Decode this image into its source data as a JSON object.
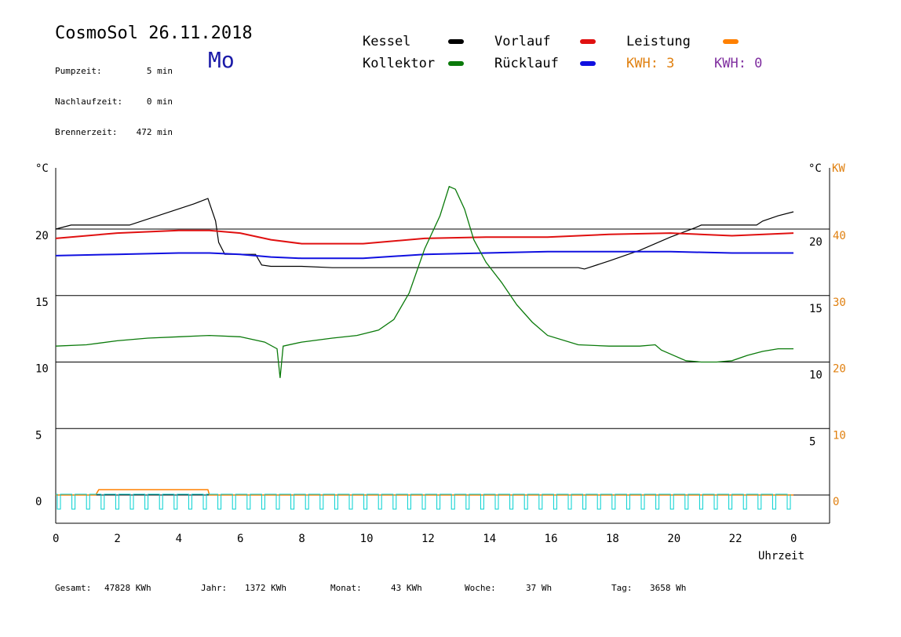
{
  "header": {
    "title": "CosmoSol 26.11.2018",
    "day": "Mo",
    "stats": [
      {
        "label": "Pumpzeit:",
        "value": "5 min"
      },
      {
        "label": "Nachlaufzeit:",
        "value": "0 min"
      },
      {
        "label": "Brennerzeit:",
        "value": "472 min"
      }
    ]
  },
  "legend": {
    "kessel": "Kessel",
    "kollektor": "Kollektor",
    "vorlauf": "Vorlauf",
    "ruecklauf": "Rücklauf",
    "leistung": "Leistung",
    "kwh_orange": "KWH: 3",
    "kwh_purple": "KWH: 0"
  },
  "colors": {
    "kessel": "#000000",
    "kollektor": "#0a7a0a",
    "vorlauf": "#e01010",
    "ruecklauf": "#1010e0",
    "leistung": "#ff8000",
    "pump": "#00d0d0",
    "kwh_orange": "#e08010",
    "kwh_purple": "#8030a0"
  },
  "footer": {
    "gesamt_label": "Gesamt:",
    "gesamt_value": "47828 KWh",
    "jahr_label": "Jahr:",
    "jahr_value": "1372 KWh",
    "monat_label": "Monat:",
    "monat_value": "43 KWh",
    "woche_label": "Woche:",
    "woche_value": "37 Wh",
    "tag_label": "Tag:",
    "tag_value": "3658 Wh"
  },
  "chart_data": {
    "type": "line",
    "xlabel": "Uhrzeit",
    "ylabel_left": "°C",
    "ylabel_right_1": "°C",
    "ylabel_right_2": "KW",
    "xlim": [
      0,
      24
    ],
    "ylim": [
      -2,
      25
    ],
    "x_ticks": [
      "0",
      "2",
      "4",
      "6",
      "8",
      "10",
      "12",
      "14",
      "16",
      "18",
      "20",
      "22",
      "0"
    ],
    "y_ticks_left": [
      "20",
      "15",
      "10",
      "5",
      "0"
    ],
    "y_ticks_right_1": [
      "20",
      "15",
      "10",
      "5"
    ],
    "y_ticks_right_2": [
      "40",
      "30",
      "20",
      "10",
      "0"
    ],
    "grid_y": [
      20,
      15,
      10,
      5,
      0
    ],
    "series": [
      {
        "name": "Kessel",
        "key": "kessel",
        "x": [
          0,
          0.5,
          2.4,
          4.5,
          4.95,
          5.2,
          5.3,
          5.5,
          6.5,
          6.7,
          7,
          8,
          9,
          10,
          12,
          14,
          16,
          17,
          17.2,
          18,
          19,
          20,
          20.8,
          21,
          21.5,
          22.5,
          22.8,
          23,
          23.5,
          24
        ],
        "y": [
          20.0,
          20.3,
          20.3,
          21.9,
          22.3,
          20.6,
          19.0,
          18.1,
          18.1,
          17.3,
          17.2,
          17.2,
          17.1,
          17.1,
          17.1,
          17.1,
          17.1,
          17.1,
          17.0,
          17.6,
          18.4,
          19.4,
          20.1,
          20.3,
          20.3,
          20.3,
          20.3,
          20.6,
          21.0,
          21.3
        ]
      },
      {
        "name": "Vorlauf",
        "key": "vorlauf",
        "x": [
          0,
          2,
          4,
          5,
          6,
          7,
          8,
          10,
          12,
          14,
          16,
          18,
          20,
          22,
          24
        ],
        "y": [
          19.3,
          19.7,
          19.9,
          19.9,
          19.7,
          19.2,
          18.9,
          18.9,
          19.3,
          19.4,
          19.4,
          19.6,
          19.7,
          19.5,
          19.7
        ]
      },
      {
        "name": "Rücklauf",
        "key": "ruecklauf",
        "x": [
          0,
          2,
          4,
          5,
          6,
          7,
          8,
          10,
          12,
          14,
          16,
          18,
          20,
          22,
          24
        ],
        "y": [
          18.0,
          18.1,
          18.2,
          18.2,
          18.1,
          17.9,
          17.8,
          17.8,
          18.1,
          18.2,
          18.3,
          18.3,
          18.3,
          18.2,
          18.2
        ]
      },
      {
        "name": "Kollektor",
        "key": "kollektor",
        "x": [
          0,
          1,
          2,
          3,
          4,
          5,
          6,
          6.8,
          7.2,
          7.3,
          7.4,
          8,
          9,
          9.8,
          10.5,
          11,
          11.5,
          12,
          12.5,
          12.8,
          13,
          13.3,
          13.6,
          14,
          14.5,
          15,
          15.5,
          16,
          17,
          18,
          19,
          19.5,
          19.7,
          20,
          20.5,
          21,
          21.5,
          22,
          22.5,
          23,
          23.5,
          24
        ],
        "y": [
          11.2,
          11.3,
          11.6,
          11.8,
          11.9,
          12.0,
          11.9,
          11.5,
          11.0,
          8.8,
          11.2,
          11.5,
          11.8,
          12.0,
          12.4,
          13.2,
          15.2,
          18.5,
          21.0,
          23.2,
          23.0,
          21.5,
          19.2,
          17.5,
          16.0,
          14.3,
          13.0,
          12.0,
          11.3,
          11.2,
          11.2,
          11.3,
          10.9,
          10.6,
          10.1,
          10.0,
          10.0,
          10.1,
          10.5,
          10.8,
          11.0,
          11.0
        ]
      },
      {
        "name": "Leistung",
        "key": "leistung",
        "x": [
          0,
          1.3,
          1.4,
          4.95,
          5.0,
          24
        ],
        "y": [
          0,
          0,
          0.4,
          0.4,
          0,
          0
        ]
      },
      {
        "name": "",
        "key": "pump_on",
        "x": [],
        "y": []
      }
    ]
  }
}
